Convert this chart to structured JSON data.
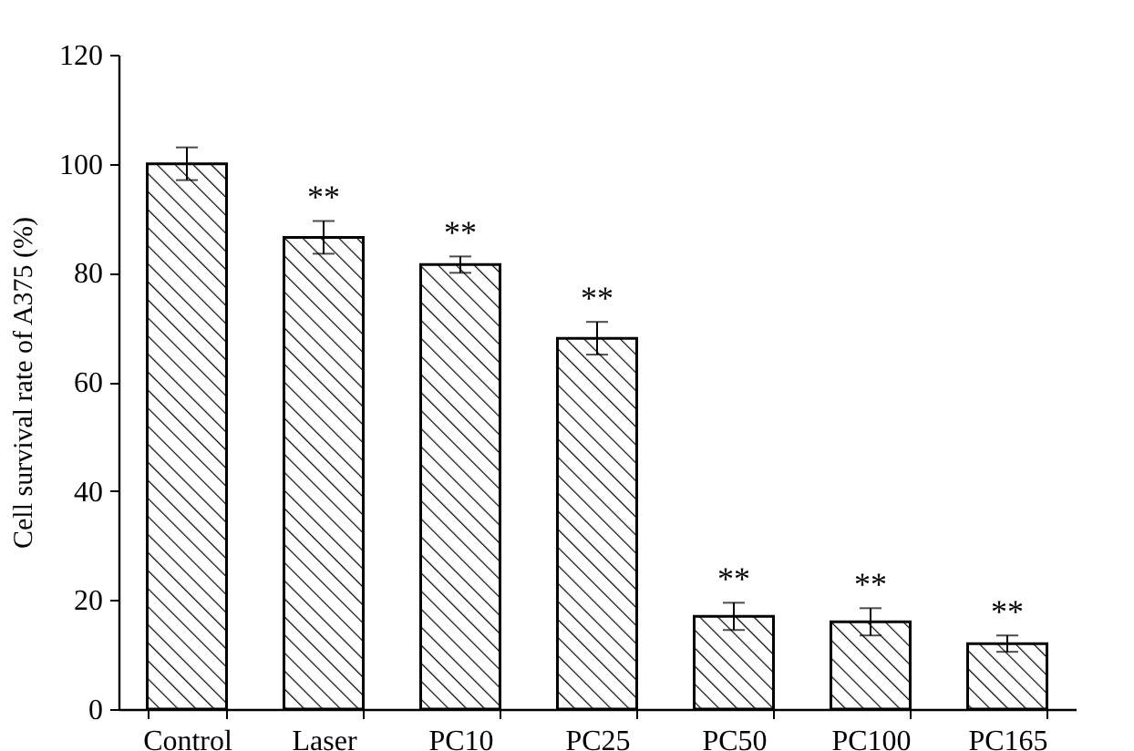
{
  "chart_data": {
    "type": "bar",
    "ylabel": "Cell survival rate of A375 (%)",
    "categories": [
      "Control",
      "Laser",
      "PC10",
      "PC25",
      "PC50",
      "PC100",
      "PC165"
    ],
    "values": [
      100,
      86.5,
      81.5,
      68,
      17,
      16,
      12
    ],
    "errors": [
      3,
      3,
      1.5,
      3,
      2.5,
      2.5,
      1.5
    ],
    "color": "#000000",
    "ylim": [
      0,
      120
    ],
    "yticks": [
      0,
      20,
      40,
      60,
      80,
      100,
      120
    ],
    "grid": false,
    "annotations": [
      {
        "text": "**",
        "x": "Laser",
        "y": 89.5
      },
      {
        "text": "**",
        "x": "PC10",
        "y": 83
      },
      {
        "text": "**",
        "x": "PC25",
        "y": 71
      },
      {
        "text": "**",
        "x": "PC50",
        "y": 19.5
      },
      {
        "text": "**",
        "x": "PC100",
        "y": 18.5
      },
      {
        "text": "**",
        "x": "PC165",
        "y": 13.5
      }
    ]
  }
}
